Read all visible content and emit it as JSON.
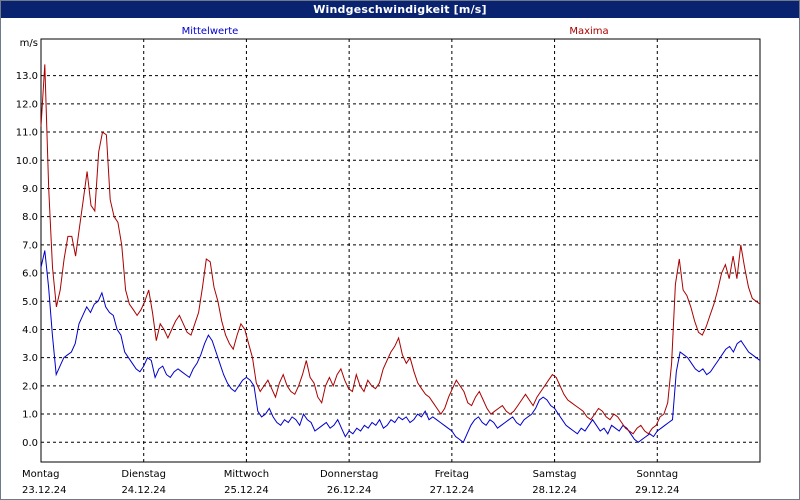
{
  "window": {
    "title": "Windgeschwindigkeit [m/s]"
  },
  "chart_data": {
    "type": "line",
    "title": "Windgeschwindigkeit [m/s]",
    "ylabel": "m/s",
    "ylim": [
      -0.7,
      14.3
    ],
    "yticks": [
      "0.0",
      "1.0",
      "2.0",
      "3.0",
      "4.0",
      "5.0",
      "6.0",
      "7.0",
      "8.0",
      "9.0",
      "10.0",
      "11.0",
      "12.0",
      "13.0"
    ],
    "xlim": [
      0,
      7.0
    ],
    "days": [
      {
        "name": "Montag",
        "date": "23.12.24"
      },
      {
        "name": "Dienstag",
        "date": "24.12.24"
      },
      {
        "name": "Mittwoch",
        "date": "25.12.24"
      },
      {
        "name": "Donnerstag",
        "date": "26.12.24"
      },
      {
        "name": "Freitag",
        "date": "27.12.24"
      },
      {
        "name": "Samstag",
        "date": "28.12.24"
      },
      {
        "name": "Sonntag",
        "date": "29.12.24"
      }
    ],
    "grid": true,
    "series": [
      {
        "name": "Mittelwerte",
        "color": "#0000cc",
        "values": [
          6.2,
          6.8,
          5.5,
          3.8,
          2.4,
          2.7,
          3.0,
          3.1,
          3.2,
          3.5,
          4.2,
          4.5,
          4.8,
          4.6,
          4.9,
          5.0,
          5.3,
          4.8,
          4.6,
          4.5,
          4.0,
          3.8,
          3.2,
          3.0,
          2.8,
          2.6,
          2.5,
          2.7,
          3.0,
          2.9,
          2.3,
          2.6,
          2.7,
          2.4,
          2.3,
          2.5,
          2.6,
          2.5,
          2.4,
          2.3,
          2.6,
          2.8,
          3.1,
          3.5,
          3.8,
          3.6,
          3.2,
          2.8,
          2.4,
          2.1,
          1.9,
          1.8,
          2.0,
          2.2,
          2.3,
          2.2,
          2.0,
          1.1,
          0.9,
          1.0,
          1.2,
          0.9,
          0.7,
          0.6,
          0.8,
          0.7,
          0.9,
          0.8,
          0.6,
          1.0,
          0.8,
          0.7,
          0.4,
          0.5,
          0.6,
          0.7,
          0.5,
          0.6,
          0.8,
          0.5,
          0.2,
          0.4,
          0.3,
          0.5,
          0.4,
          0.6,
          0.5,
          0.7,
          0.6,
          0.8,
          0.5,
          0.6,
          0.8,
          0.7,
          0.9,
          0.8,
          0.9,
          0.7,
          0.8,
          1.0,
          0.9,
          1.1,
          0.8,
          0.9,
          0.8,
          0.7,
          0.6,
          0.5,
          0.4,
          0.2,
          0.1,
          0.0,
          0.3,
          0.6,
          0.8,
          0.9,
          0.7,
          0.6,
          0.8,
          0.7,
          0.5,
          0.6,
          0.7,
          0.8,
          0.9,
          0.7,
          0.6,
          0.8,
          0.9,
          1.0,
          1.2,
          1.5,
          1.6,
          1.5,
          1.3,
          1.2,
          1.0,
          0.8,
          0.6,
          0.5,
          0.4,
          0.3,
          0.5,
          0.4,
          0.6,
          0.8,
          0.6,
          0.4,
          0.5,
          0.3,
          0.6,
          0.5,
          0.4,
          0.6,
          0.5,
          0.3,
          0.1,
          0.0,
          0.1,
          0.2,
          0.3,
          0.2,
          0.4,
          0.5,
          0.6,
          0.7,
          0.8,
          2.5,
          3.2,
          3.1,
          3.0,
          2.8,
          2.6,
          2.5,
          2.6,
          2.4,
          2.5,
          2.7,
          2.9,
          3.1,
          3.3,
          3.4,
          3.2,
          3.5,
          3.6,
          3.4,
          3.2,
          3.1,
          3.0,
          2.9
        ]
      },
      {
        "name": "Maxima",
        "color": "#aa0000",
        "values": [
          11.2,
          13.4,
          9.0,
          6.2,
          4.8,
          5.4,
          6.5,
          7.3,
          7.3,
          6.6,
          7.6,
          8.6,
          9.6,
          8.4,
          8.2,
          10.3,
          11.0,
          10.9,
          8.6,
          8.0,
          7.8,
          7.0,
          5.4,
          4.9,
          4.7,
          4.5,
          4.7,
          5.0,
          5.4,
          4.6,
          3.6,
          4.2,
          4.0,
          3.7,
          4.0,
          4.3,
          4.5,
          4.2,
          3.9,
          3.8,
          4.2,
          4.6,
          5.5,
          6.5,
          6.4,
          5.5,
          5.0,
          4.3,
          3.8,
          3.5,
          3.3,
          3.8,
          4.2,
          4.0,
          3.5,
          3.0,
          2.1,
          1.8,
          2.0,
          2.2,
          1.9,
          1.6,
          2.1,
          2.4,
          2.0,
          1.8,
          1.7,
          2.0,
          2.4,
          2.9,
          2.3,
          2.1,
          1.6,
          1.4,
          2.0,
          2.3,
          2.0,
          2.4,
          2.6,
          2.2,
          1.9,
          1.8,
          2.4,
          2.0,
          1.8,
          2.2,
          2.0,
          1.9,
          2.1,
          2.6,
          2.9,
          3.2,
          3.4,
          3.7,
          3.1,
          2.8,
          3.0,
          2.5,
          2.1,
          1.9,
          1.7,
          1.6,
          1.4,
          1.2,
          1.0,
          1.2,
          1.6,
          1.9,
          2.2,
          2.0,
          1.8,
          1.4,
          1.3,
          1.6,
          1.8,
          1.5,
          1.2,
          1.0,
          1.1,
          1.2,
          1.3,
          1.1,
          1.0,
          1.1,
          1.3,
          1.5,
          1.7,
          1.5,
          1.3,
          1.6,
          1.8,
          2.0,
          2.2,
          2.4,
          2.3,
          2.0,
          1.7,
          1.5,
          1.4,
          1.3,
          1.2,
          1.1,
          0.9,
          0.8,
          1.0,
          1.2,
          1.1,
          0.9,
          0.8,
          1.0,
          0.9,
          0.7,
          0.5,
          0.4,
          0.3,
          0.5,
          0.6,
          0.4,
          0.3,
          0.5,
          0.6,
          0.9,
          1.0,
          1.4,
          2.8,
          5.6,
          6.5,
          5.4,
          5.2,
          4.8,
          4.3,
          3.9,
          3.8,
          4.1,
          4.5,
          4.9,
          5.4,
          6.0,
          6.3,
          5.8,
          6.6,
          5.8,
          7.0,
          6.2,
          5.5,
          5.1,
          5.0,
          4.9
        ]
      }
    ]
  }
}
